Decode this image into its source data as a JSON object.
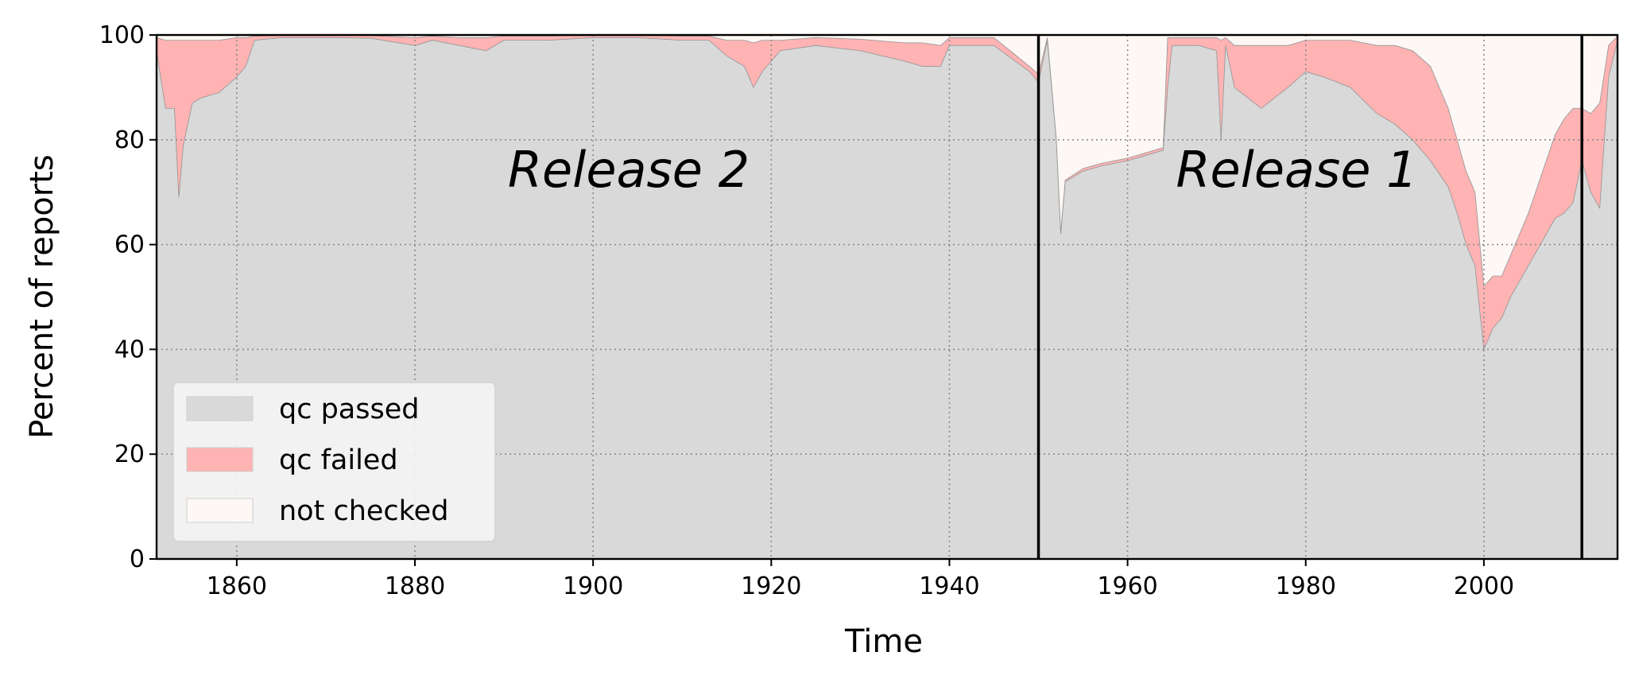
{
  "chart_data": {
    "type": "area",
    "stacked": true,
    "xlabel": "Time",
    "ylabel": "Percent of reports",
    "xlim": [
      1851,
      2015
    ],
    "ylim": [
      0,
      100
    ],
    "xticks": [
      1860,
      1880,
      1900,
      1920,
      1940,
      1960,
      1980,
      2000
    ],
    "yticks": [
      0,
      20,
      40,
      60,
      80,
      100
    ],
    "grid": true,
    "legend_position": "lower-left",
    "colors": {
      "qc_passed": "#d9d9d9",
      "qc_failed": "#ffb3b3",
      "not_checked": "#fdf8f5",
      "edge": "#999999",
      "divider": "#000000"
    },
    "x": [
      1851,
      1852,
      1853,
      1853.5,
      1854,
      1855,
      1856,
      1858,
      1860,
      1861,
      1862,
      1865,
      1870,
      1875,
      1880,
      1882,
      1885,
      1888,
      1890,
      1895,
      1900,
      1905,
      1910,
      1913,
      1915,
      1917,
      1918,
      1919,
      1920,
      1921,
      1925,
      1930,
      1935,
      1937,
      1939,
      1940,
      1945,
      1949,
      1950,
      1951,
      1952,
      1952.5,
      1953,
      1955,
      1957,
      1960,
      1962,
      1964,
      1964.5,
      1965,
      1968,
      1970,
      1970.5,
      1971,
      1972,
      1975,
      1978,
      1980,
      1982,
      1985,
      1988,
      1990,
      1992,
      1994,
      1996,
      1997,
      1998,
      1999,
      2000,
      2001,
      2002,
      2003,
      2005,
      2007,
      2008,
      2009,
      2010,
      2011,
      2012,
      2013,
      2014,
      2015
    ],
    "series": [
      {
        "name": "qc passed",
        "values": [
          97,
          86,
          86,
          69,
          79,
          87,
          88,
          89,
          92,
          94,
          99,
          99.5,
          99.5,
          99.4,
          98,
          99,
          98,
          97,
          99,
          99,
          99.5,
          99.5,
          99,
          99,
          96,
          94,
          90,
          93,
          95,
          97,
          98,
          97,
          95,
          94,
          94,
          98,
          98,
          93,
          91,
          99,
          80,
          62,
          72,
          74,
          75,
          76,
          77,
          78,
          90,
          98,
          98,
          97,
          80,
          98,
          90,
          86,
          90,
          93,
          92,
          90,
          85,
          83,
          80,
          76,
          71,
          66,
          60,
          56,
          40,
          44,
          46,
          50,
          56,
          62,
          65,
          66,
          68,
          76,
          70,
          67,
          92,
          99
        ]
      },
      {
        "name": "qc failed",
        "values": [
          2.5,
          13,
          13,
          30,
          20,
          12,
          11,
          10,
          7.5,
          5.5,
          0.8,
          0.4,
          0.4,
          0.5,
          1.5,
          0.8,
          1.5,
          2.5,
          0.8,
          0.8,
          0.4,
          0.4,
          0.8,
          0.8,
          3,
          5,
          8.5,
          6,
          4,
          2,
          1.5,
          2.2,
          3.5,
          4.5,
          4,
          1.5,
          1.5,
          1,
          1.5,
          0.5,
          0.3,
          0.3,
          0.3,
          0.5,
          0.5,
          0.5,
          0.5,
          0.5,
          9.5,
          1.5,
          1.5,
          2.5,
          19,
          1.5,
          8,
          12,
          8,
          6,
          7,
          9,
          13,
          15,
          17,
          18,
          15,
          14,
          14,
          14,
          12,
          10,
          8,
          8,
          10,
          14,
          16,
          18,
          18,
          10,
          15,
          20,
          6,
          0.8
        ]
      },
      {
        "name": "not checked",
        "values": [
          0.5,
          1,
          1,
          1,
          1,
          1,
          1,
          1,
          0.5,
          0.5,
          0.2,
          0.1,
          0.1,
          0.1,
          0.5,
          0.2,
          0.5,
          0.5,
          0.2,
          0.2,
          0.1,
          0.1,
          0.2,
          0.2,
          1,
          1,
          1.5,
          1,
          1,
          1,
          0.5,
          0.8,
          1.5,
          1.5,
          2,
          0.5,
          0.5,
          6,
          7.5,
          0.5,
          19.7,
          37.7,
          27.7,
          25.5,
          24.5,
          23.5,
          22.5,
          21.5,
          0.5,
          0.5,
          0.5,
          0.5,
          1,
          0.5,
          2,
          2,
          2,
          1,
          1,
          1,
          2,
          2,
          3,
          6,
          14,
          20,
          26,
          30,
          48,
          46,
          46,
          42,
          34,
          24,
          19,
          16,
          14,
          14,
          15,
          13,
          2,
          0.2
        ]
      }
    ],
    "dividers": [
      1950,
      2011
    ],
    "annotations": [
      {
        "text": "Release 2",
        "x": 1904,
        "y": 71
      },
      {
        "text": "Release 1",
        "x": 1979,
        "y": 71
      }
    ]
  }
}
